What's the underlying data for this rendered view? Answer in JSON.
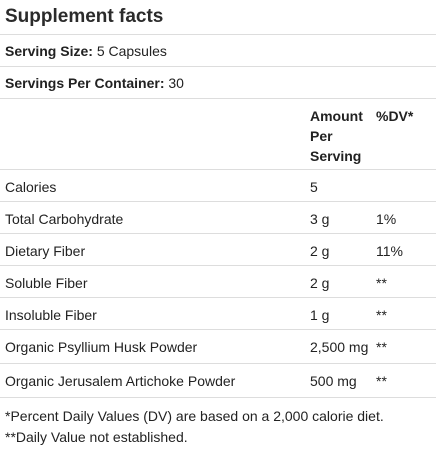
{
  "title": "Supplement facts",
  "serving_size": {
    "label": "Serving Size:",
    "value": "5 Capsules"
  },
  "servings_per_container": {
    "label": "Servings Per Container:",
    "value": "30"
  },
  "header": {
    "amount_line1": "Amount",
    "amount_line2": "Per",
    "amount_line3": "Serving",
    "dv": "%DV*"
  },
  "rows": [
    {
      "name": "Calories",
      "amount": "5",
      "dv": ""
    },
    {
      "name": "Total Carbohydrate",
      "amount": "3 g",
      "dv": "1%"
    },
    {
      "name": "Dietary Fiber",
      "amount": "2 g",
      "dv": "11%"
    },
    {
      "name": "Soluble Fiber",
      "amount": "2 g",
      "dv": "**"
    },
    {
      "name": "Insoluble Fiber",
      "amount": "1 g",
      "dv": "**"
    },
    {
      "name": "Organic Psyllium Husk Powder",
      "amount": "2,500 mg",
      "dv": "**"
    },
    {
      "name": "Organic Jerusalem Artichoke Powder",
      "amount": "500 mg",
      "dv": "**"
    }
  ],
  "footnotes": [
    "*Percent Daily Values (DV) are based on a 2,000 calorie diet.",
    "**Daily Value not established."
  ]
}
